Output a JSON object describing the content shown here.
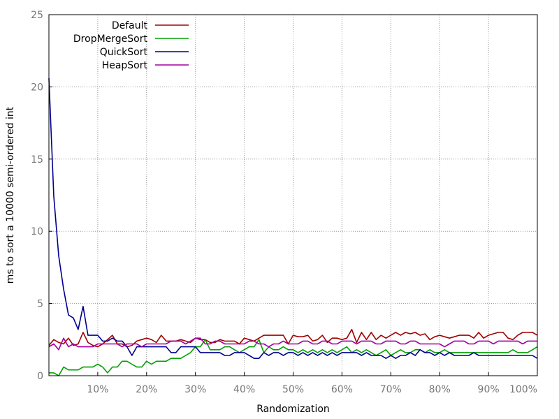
{
  "chart_data": {
    "type": "line",
    "xlabel": "Randomization",
    "ylabel": "ms to sort a 10000 semi-ordered int",
    "xlim": [
      0,
      100
    ],
    "ylim": [
      0,
      25
    ],
    "x_ticks": [
      {
        "value": 10,
        "label": "10%"
      },
      {
        "value": 20,
        "label": "20%"
      },
      {
        "value": 30,
        "label": "30%"
      },
      {
        "value": 40,
        "label": "40%"
      },
      {
        "value": 50,
        "label": "50%"
      },
      {
        "value": 60,
        "label": "60%"
      },
      {
        "value": 70,
        "label": "70%"
      },
      {
        "value": 80,
        "label": "80%"
      },
      {
        "value": 90,
        "label": "90%"
      },
      {
        "value": 100,
        "label": "100%"
      }
    ],
    "y_ticks": [
      {
        "value": 0,
        "label": "0"
      },
      {
        "value": 5,
        "label": "5"
      },
      {
        "value": 10,
        "label": "10"
      },
      {
        "value": 15,
        "label": "15"
      },
      {
        "value": 20,
        "label": "20"
      },
      {
        "value": 25,
        "label": "25"
      }
    ],
    "grid": true,
    "legend_position": "top-left",
    "x": [
      0,
      1,
      2,
      3,
      4,
      5,
      6,
      7,
      8,
      9,
      10,
      11,
      12,
      13,
      14,
      15,
      16,
      17,
      18,
      19,
      20,
      21,
      22,
      23,
      24,
      25,
      26,
      27,
      28,
      29,
      30,
      31,
      32,
      33,
      34,
      35,
      36,
      37,
      38,
      39,
      40,
      41,
      42,
      43,
      44,
      45,
      46,
      47,
      48,
      49,
      50,
      51,
      52,
      53,
      54,
      55,
      56,
      57,
      58,
      59,
      60,
      61,
      62,
      63,
      64,
      65,
      66,
      67,
      68,
      69,
      70,
      71,
      72,
      73,
      74,
      75,
      76,
      77,
      78,
      79,
      80,
      81,
      82,
      83,
      84,
      85,
      86,
      87,
      88,
      89,
      90,
      91,
      92,
      93,
      94,
      95,
      96,
      97,
      98,
      99,
      100
    ],
    "series": [
      {
        "name": "Default",
        "color": "#a00000",
        "values": [
          2.1,
          2.5,
          2.3,
          2.2,
          2.6,
          2.1,
          2.2,
          3.0,
          2.3,
          2.1,
          2.0,
          2.2,
          2.5,
          2.8,
          2.2,
          2.2,
          2.0,
          2.1,
          2.4,
          2.5,
          2.6,
          2.5,
          2.3,
          2.8,
          2.4,
          2.4,
          2.4,
          2.5,
          2.4,
          2.3,
          2.6,
          2.5,
          2.5,
          2.3,
          2.3,
          2.5,
          2.4,
          2.4,
          2.4,
          2.2,
          2.6,
          2.5,
          2.4,
          2.6,
          2.8,
          2.8,
          2.8,
          2.8,
          2.8,
          2.2,
          2.8,
          2.7,
          2.7,
          2.8,
          2.4,
          2.5,
          2.8,
          2.3,
          2.6,
          2.6,
          2.5,
          2.6,
          3.2,
          2.3,
          3.0,
          2.5,
          3.0,
          2.5,
          2.8,
          2.6,
          2.8,
          3.0,
          2.8,
          3.0,
          2.9,
          3.0,
          2.8,
          2.9,
          2.5,
          2.7,
          2.8,
          2.7,
          2.6,
          2.7,
          2.8,
          2.8,
          2.8,
          2.6,
          3.0,
          2.6,
          2.8,
          2.9,
          3.0,
          3.0,
          2.6,
          2.5,
          2.8,
          3.0,
          3.0,
          3.0,
          2.8
        ]
      },
      {
        "name": "DropMergeSort",
        "color": "#00a000",
        "values": [
          0.2,
          0.2,
          0.0,
          0.6,
          0.4,
          0.4,
          0.4,
          0.6,
          0.6,
          0.6,
          0.8,
          0.6,
          0.2,
          0.6,
          0.6,
          1.0,
          1.0,
          0.8,
          0.6,
          0.6,
          1.0,
          0.8,
          1.0,
          1.0,
          1.0,
          1.2,
          1.2,
          1.2,
          1.4,
          1.6,
          2.0,
          2.0,
          2.5,
          1.8,
          1.8,
          1.8,
          2.0,
          2.0,
          1.8,
          1.6,
          1.8,
          2.0,
          2.0,
          2.5,
          1.6,
          2.0,
          1.8,
          1.8,
          2.0,
          1.8,
          1.8,
          1.6,
          1.8,
          1.6,
          1.8,
          1.6,
          1.8,
          1.6,
          1.8,
          1.6,
          1.8,
          2.0,
          1.6,
          1.8,
          1.6,
          1.8,
          1.6,
          1.4,
          1.6,
          1.8,
          1.4,
          1.6,
          1.8,
          1.6,
          1.6,
          1.8,
          1.8,
          1.6,
          1.8,
          1.6,
          1.6,
          1.8,
          1.6,
          1.6,
          1.6,
          1.6,
          1.6,
          1.6,
          1.6,
          1.6,
          1.6,
          1.6,
          1.6,
          1.6,
          1.6,
          1.8,
          1.6,
          1.6,
          1.6,
          1.8,
          2.0
        ]
      },
      {
        "name": "QuickSort",
        "color": "#000090",
        "values": [
          20.6,
          12.4,
          8.3,
          6.0,
          4.2,
          4.0,
          3.2,
          4.8,
          2.8,
          2.8,
          2.8,
          2.4,
          2.4,
          2.6,
          2.4,
          2.4,
          2.0,
          1.4,
          2.0,
          2.0,
          2.0,
          2.0,
          2.0,
          2.0,
          2.0,
          1.6,
          1.6,
          2.0,
          2.0,
          2.0,
          2.0,
          1.6,
          1.6,
          1.6,
          1.6,
          1.6,
          1.4,
          1.4,
          1.6,
          1.6,
          1.6,
          1.4,
          1.2,
          1.2,
          1.6,
          1.4,
          1.6,
          1.6,
          1.4,
          1.6,
          1.6,
          1.4,
          1.6,
          1.4,
          1.6,
          1.4,
          1.6,
          1.4,
          1.6,
          1.4,
          1.6,
          1.6,
          1.6,
          1.6,
          1.4,
          1.6,
          1.4,
          1.4,
          1.4,
          1.2,
          1.4,
          1.2,
          1.4,
          1.4,
          1.6,
          1.4,
          1.8,
          1.6,
          1.6,
          1.4,
          1.6,
          1.4,
          1.6,
          1.4,
          1.4,
          1.4,
          1.4,
          1.6,
          1.4,
          1.4,
          1.4,
          1.4,
          1.4,
          1.4,
          1.4,
          1.4,
          1.4,
          1.4,
          1.4,
          1.4,
          1.2
        ]
      },
      {
        "name": "HeapSort",
        "color": "#a000a0",
        "values": [
          2.0,
          2.2,
          1.8,
          2.6,
          2.0,
          2.2,
          2.0,
          2.0,
          2.0,
          2.0,
          2.2,
          2.2,
          2.2,
          2.2,
          2.2,
          2.0,
          2.2,
          2.2,
          2.2,
          2.0,
          2.2,
          2.2,
          2.2,
          2.2,
          2.2,
          2.4,
          2.4,
          2.4,
          2.2,
          2.4,
          2.6,
          2.6,
          2.2,
          2.2,
          2.4,
          2.4,
          2.2,
          2.2,
          2.2,
          2.2,
          2.2,
          2.4,
          2.4,
          2.2,
          2.2,
          2.0,
          2.2,
          2.2,
          2.4,
          2.2,
          2.2,
          2.2,
          2.4,
          2.4,
          2.2,
          2.2,
          2.4,
          2.4,
          2.2,
          2.2,
          2.4,
          2.4,
          2.4,
          2.2,
          2.4,
          2.4,
          2.4,
          2.2,
          2.2,
          2.4,
          2.4,
          2.4,
          2.2,
          2.2,
          2.4,
          2.4,
          2.2,
          2.2,
          2.2,
          2.2,
          2.2,
          2.0,
          2.2,
          2.4,
          2.4,
          2.4,
          2.2,
          2.2,
          2.4,
          2.4,
          2.4,
          2.2,
          2.4,
          2.4,
          2.4,
          2.4,
          2.4,
          2.2,
          2.4,
          2.4,
          2.4
        ]
      }
    ]
  }
}
